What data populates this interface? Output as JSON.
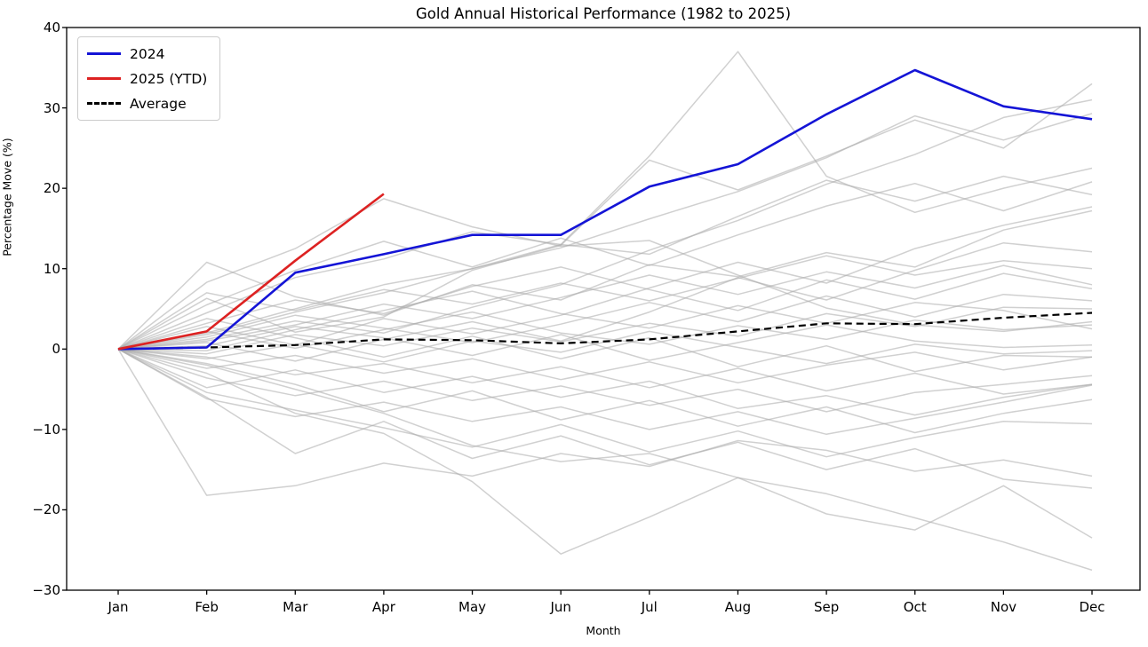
{
  "title": "Gold Annual Historical Performance (1982 to 2025)",
  "legend": {
    "entries": [
      {
        "label": "2024",
        "color": "#1414d6",
        "dash": "none"
      },
      {
        "label": "2025 (YTD)",
        "color": "#dd2222",
        "dash": "none"
      },
      {
        "label": "Average",
        "color": "#000000",
        "dash": "dashed"
      }
    ]
  },
  "chart_data": {
    "type": "line",
    "title": "Gold Annual Historical Performance (1982 to 2025)",
    "xlabel": "Month",
    "ylabel": "Percentage Move (%)",
    "x_categories": [
      "Jan",
      "Feb",
      "Mar",
      "Apr",
      "May",
      "Jun",
      "Jul",
      "Aug",
      "Sep",
      "Oct",
      "Nov",
      "Dec"
    ],
    "yticks": [
      40,
      30,
      20,
      10,
      0,
      -10,
      -20,
      -30
    ],
    "ylim": [
      -30,
      40
    ],
    "grid": false,
    "legend_position": "upper left",
    "highlight_series": [
      {
        "name": "2024",
        "color": "#1414d6",
        "width": 2.6,
        "dash": null,
        "values": [
          0,
          0.2,
          9.5,
          11.8,
          14.2,
          14.2,
          20.2,
          23.0,
          29.2,
          34.7,
          30.2,
          28.6
        ]
      },
      {
        "name": "2025 (YTD)",
        "color": "#dd2222",
        "width": 2.6,
        "dash": null,
        "values": [
          0,
          2.2,
          11.0,
          19.3
        ]
      },
      {
        "name": "Average",
        "color": "#000000",
        "width": 2.2,
        "dash": "8 5",
        "values": [
          0,
          0.2,
          0.5,
          1.2,
          1.1,
          0.7,
          1.2,
          2.2,
          3.2,
          3.1,
          3.9,
          4.5
        ]
      }
    ],
    "historical_style": {
      "color": "#a9a9a9",
      "opacity": 0.55,
      "width": 1.5
    },
    "historical_series": [
      {
        "name": "hist-01",
        "values": [
          0,
          2.0,
          5.0,
          8.0,
          10.0,
          13.0,
          24.0,
          37.0,
          21.5,
          17.0,
          20.0,
          22.5
        ]
      },
      {
        "name": "hist-02",
        "values": [
          0,
          8.3,
          12.5,
          18.7,
          15.2,
          12.8,
          13.5,
          9.2,
          5.1,
          3.0,
          2.2,
          3.4
        ]
      },
      {
        "name": "hist-03",
        "values": [
          0,
          10.8,
          6.5,
          4.2,
          8.0,
          6.1,
          10.5,
          9.0,
          12.0,
          10.2,
          14.8,
          17.2
        ]
      },
      {
        "name": "hist-04",
        "values": [
          0,
          6.3,
          2.1,
          4.0,
          9.8,
          12.9,
          23.5,
          19.8,
          24.0,
          28.5,
          25.0,
          33.0
        ]
      },
      {
        "name": "hist-05",
        "values": [
          0,
          1.2,
          3.5,
          2.0,
          5.2,
          8.0,
          12.3,
          16.0,
          20.5,
          24.2,
          28.8,
          31.0
        ]
      },
      {
        "name": "hist-06",
        "values": [
          0,
          4.5,
          8.9,
          11.2,
          14.6,
          13.0,
          11.8,
          16.5,
          21.0,
          18.4,
          21.5,
          19.2
        ]
      },
      {
        "name": "hist-07",
        "values": [
          0,
          2.8,
          0.5,
          3.8,
          1.9,
          4.2,
          7.6,
          10.8,
          8.2,
          12.5,
          15.4,
          17.7
        ]
      },
      {
        "name": "hist-08",
        "values": [
          0,
          0.8,
          -1.5,
          1.2,
          3.4,
          1.0,
          4.6,
          8.9,
          6.1,
          9.8,
          13.2,
          12.1
        ]
      },
      {
        "name": "hist-09",
        "values": [
          0,
          5.5,
          9.8,
          13.4,
          10.2,
          13.8,
          10.4,
          14.2,
          17.8,
          20.6,
          17.2,
          20.8
        ]
      },
      {
        "name": "hist-10",
        "values": [
          0,
          3.2,
          6.1,
          4.4,
          7.8,
          10.2,
          7.4,
          4.8,
          8.6,
          6.2,
          9.4,
          7.5
        ]
      },
      {
        "name": "hist-11",
        "values": [
          0,
          1.5,
          4.2,
          2.6,
          0.8,
          3.1,
          5.8,
          3.4,
          6.6,
          4.0,
          6.8,
          6.0
        ]
      },
      {
        "name": "hist-12",
        "values": [
          0,
          -0.6,
          1.8,
          0.4,
          2.6,
          0.9,
          3.2,
          1.6,
          4.4,
          2.8,
          5.2,
          5.0
        ]
      },
      {
        "name": "hist-13",
        "values": [
          0,
          2.2,
          0.1,
          2.4,
          4.6,
          2.0,
          0.6,
          2.9,
          1.2,
          3.6,
          2.4,
          3.0
        ]
      },
      {
        "name": "hist-14",
        "values": [
          0,
          0.4,
          2.8,
          1.4,
          -0.8,
          1.8,
          -1.4,
          0.8,
          3.0,
          1.0,
          0.2,
          0.5
        ]
      },
      {
        "name": "hist-15",
        "values": [
          0,
          -1.2,
          0.6,
          -1.6,
          1.0,
          -0.4,
          2.2,
          0.2,
          -1.8,
          0.6,
          -0.6,
          -0.2
        ]
      },
      {
        "name": "hist-16",
        "values": [
          0,
          -2.4,
          -0.8,
          -3.0,
          -1.2,
          -3.8,
          -1.6,
          -4.2,
          -2.0,
          -0.4,
          -2.6,
          -1.0
        ]
      },
      {
        "name": "hist-17",
        "values": [
          0,
          -3.6,
          -5.8,
          -4.0,
          -6.4,
          -4.6,
          -7.0,
          -5.0,
          -7.8,
          -5.4,
          -4.4,
          -3.3
        ]
      },
      {
        "name": "hist-18",
        "values": [
          0,
          -4.8,
          -2.6,
          -5.4,
          -3.4,
          -6.0,
          -4.0,
          -7.4,
          -5.8,
          -8.2,
          -6.0,
          -4.4
        ]
      },
      {
        "name": "hist-19",
        "values": [
          0,
          -6.2,
          -8.4,
          -6.6,
          -9.0,
          -7.2,
          -10.0,
          -7.8,
          -10.6,
          -8.6,
          -6.6,
          -4.5
        ]
      },
      {
        "name": "hist-20",
        "values": [
          0,
          -1.8,
          -4.4,
          -7.8,
          -5.2,
          -8.8,
          -6.4,
          -9.6,
          -7.2,
          -10.4,
          -8.0,
          -6.3
        ]
      },
      {
        "name": "hist-21",
        "values": [
          0,
          -5.4,
          -7.6,
          -9.8,
          -12.2,
          -9.4,
          -12.8,
          -10.2,
          -13.4,
          -11.0,
          -9.0,
          -9.3
        ]
      },
      {
        "name": "hist-22",
        "values": [
          0,
          -3.0,
          -8.0,
          -10.5,
          -16.5,
          -25.5,
          -20.9,
          -16.0,
          -20.5,
          -22.5,
          -17.0,
          -23.5
        ]
      },
      {
        "name": "hist-23",
        "values": [
          0,
          -2.0,
          -5.0,
          -8.0,
          -12.0,
          -14.0,
          -13.0,
          -16.0,
          -18.0,
          -21.0,
          -24.0,
          -27.5
        ]
      },
      {
        "name": "hist-24",
        "values": [
          0,
          -18.2,
          -17.0,
          -14.2,
          -15.8,
          -13.0,
          -14.6,
          -11.4,
          -12.6,
          -15.2,
          -13.8,
          -15.8
        ]
      },
      {
        "name": "hist-25",
        "values": [
          0,
          -6.0,
          -13.0,
          -9.0,
          -13.6,
          -10.8,
          -14.4,
          -11.6,
          -15.0,
          -12.4,
          -16.2,
          -17.3
        ]
      },
      {
        "name": "hist-26",
        "values": [
          0,
          7.0,
          4.8,
          7.4,
          5.6,
          8.2,
          6.0,
          8.8,
          11.6,
          9.2,
          11.0,
          10.0
        ]
      },
      {
        "name": "hist-27",
        "values": [
          0,
          1.0,
          3.0,
          5.6,
          3.8,
          6.4,
          9.2,
          6.8,
          9.6,
          7.6,
          10.4,
          8.0
        ]
      },
      {
        "name": "hist-28",
        "values": [
          0,
          -0.2,
          2.4,
          4.8,
          7.2,
          4.4,
          2.6,
          5.4,
          3.2,
          5.8,
          4.8,
          2.5
        ]
      },
      {
        "name": "hist-29",
        "values": [
          0,
          3.8,
          1.4,
          -1.0,
          1.6,
          -1.2,
          1.4,
          -2.2,
          0.4,
          -2.8,
          -0.8,
          -1.0
        ]
      },
      {
        "name": "hist-30",
        "values": [
          0,
          -1.0,
          -3.2,
          -1.8,
          -4.2,
          -2.2,
          -4.8,
          -2.4,
          -5.2,
          -3.0,
          -5.6,
          -4.4
        ]
      },
      {
        "name": "hist-31",
        "values": [
          0,
          1.8,
          4.6,
          7.0,
          10.0,
          12.6,
          16.2,
          19.6,
          23.8,
          29.0,
          26.0,
          29.3
        ]
      }
    ]
  }
}
